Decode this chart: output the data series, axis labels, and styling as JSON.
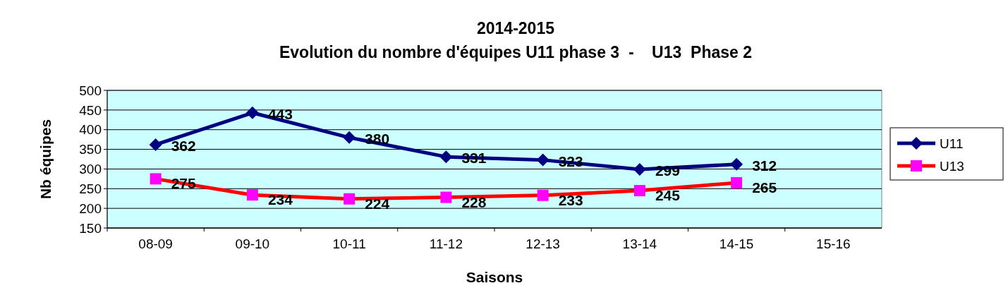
{
  "chart_data": {
    "type": "line",
    "title": "2014-2015",
    "subtitle": "Evolution du nombre d'équipes U11 phase 3  -    U13  Phase 2",
    "xlabel": "Saisons",
    "ylabel": "Nb équipes",
    "categories": [
      "08-09",
      "09-10",
      "10-11",
      "11-12",
      "12-13",
      "13-14",
      "14-15",
      "15-16"
    ],
    "series": [
      {
        "name": "U11",
        "color": "#000080",
        "marker": "diamond",
        "values": [
          362,
          443,
          380,
          331,
          323,
          299,
          312,
          null
        ]
      },
      {
        "name": "U13",
        "color": "#ff0000",
        "marker": "square",
        "values": [
          275,
          234,
          224,
          228,
          233,
          245,
          265,
          null
        ]
      }
    ],
    "ylim": [
      150,
      500
    ],
    "yticks": [
      150,
      200,
      250,
      300,
      350,
      400,
      450,
      500
    ],
    "grid": "y",
    "legend": "right",
    "data_labels": true
  }
}
